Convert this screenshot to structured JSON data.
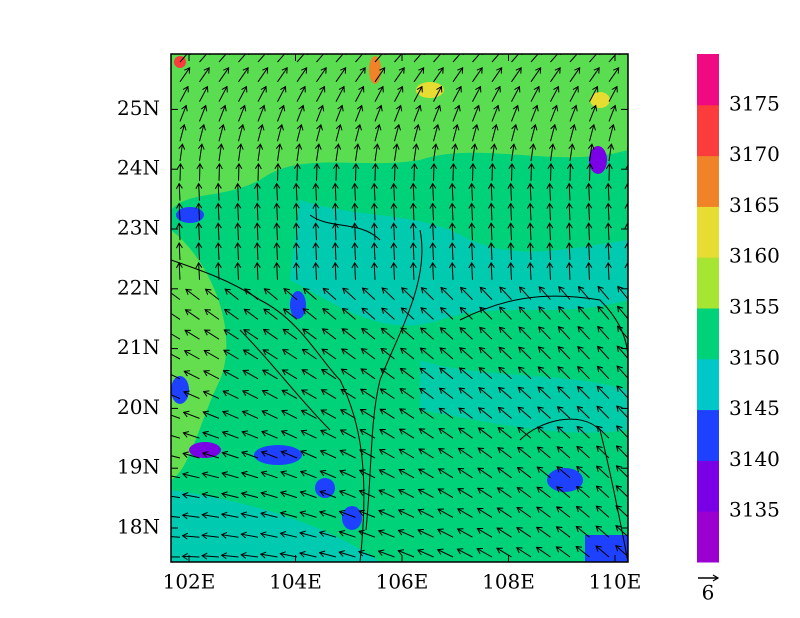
{
  "map": {
    "lon_ticks": [
      "102E",
      "104E",
      "106E",
      "108E",
      "110E"
    ],
    "lat_ticks": [
      "18N",
      "19N",
      "20N",
      "21N",
      "22N",
      "23N",
      "24N",
      "25N"
    ],
    "colorbar": {
      "colors": [
        "#9a00d0",
        "#7a00e6",
        "#1e40ff",
        "#00c8c8",
        "#00d27a",
        "#a6e632",
        "#e6dc32",
        "#f08228",
        "#fa3c3c",
        "#f00a82"
      ],
      "labels": [
        "3135",
        "3140",
        "3145",
        "3150",
        "3155",
        "3160",
        "3165",
        "3170",
        "3175"
      ]
    },
    "reference_vector": "6"
  }
}
